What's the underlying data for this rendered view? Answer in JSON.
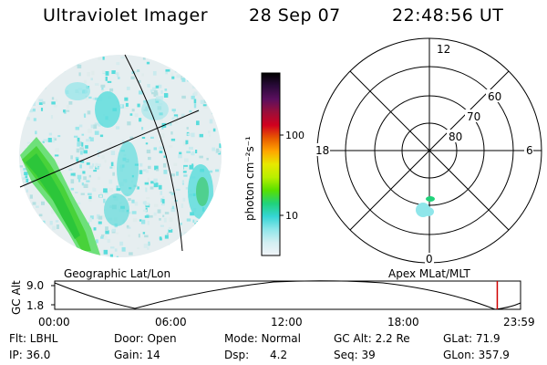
{
  "header": {
    "instrument": "Ultraviolet Imager",
    "date": "28 Sep 07",
    "time": "22:48:56 UT"
  },
  "colorbar": {
    "unit_label": "photon cm⁻²s⁻¹",
    "ticks": [
      "100",
      "10"
    ],
    "colors": [
      "#000000",
      "#2a0a3a",
      "#5a0f5e",
      "#9a0f3a",
      "#d1001f",
      "#e85a00",
      "#ffa500",
      "#e8e800",
      "#b9ef00",
      "#58e000",
      "#20d27a",
      "#35d5d5",
      "#8fe6ea",
      "#d2eff2",
      "#f2f4f8"
    ]
  },
  "polar_plot": {
    "hour_labels": [
      "12",
      "18",
      "6",
      "0"
    ],
    "lat_labels": [
      "60",
      "70",
      "80"
    ]
  },
  "map_labels": {
    "left": "Geographic Lat/Lon",
    "right": "Apex MLat/MLT"
  },
  "timeline": {
    "ylabel": "GC Alt",
    "y_ticks": [
      "9.0",
      "1.8"
    ],
    "x_ticks": [
      "00:00",
      "06:00",
      "12:00",
      "18:00",
      "23:59"
    ],
    "current_time_hours": 22.8
  },
  "info": {
    "flt": "Flt: LBHL",
    "door": "Door: Open",
    "mode": "Mode: Normal",
    "gc_alt": "GC Alt: 2.2 Re",
    "glat": "GLat:  71.9",
    "ip": "IP: 36.0",
    "gain": "Gain: 14",
    "dsp_label": "Dsp:",
    "dsp_value": "4.2",
    "seq": "Seq: 39",
    "glon": "GLon: 357.9"
  }
}
